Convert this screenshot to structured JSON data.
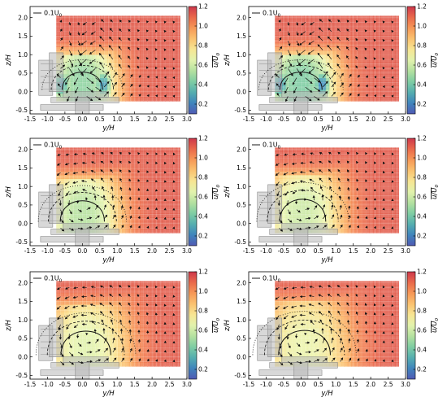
{
  "chart_data": [
    {
      "type": "heatmap",
      "panel": "row1-left",
      "reference_vector_label": "0.1U",
      "reference_vector_sub": "0",
      "xlabel": "y/H",
      "ylabel": "z/H",
      "colorbar_label": "u/U",
      "colorbar_label_sub": "0",
      "x_ticks": [
        "-1.5",
        "-1.0",
        "-0.5",
        "0.0",
        "0.5",
        "1.0",
        "1.5",
        "2.0",
        "2.5",
        "3.0"
      ],
      "y_ticks": [
        "-0.5",
        "0.0",
        "0.5",
        "1.0",
        "1.5",
        "2.0"
      ],
      "colorbar_ticks": [
        "0.2",
        "0.4",
        "0.6",
        "0.8",
        "1.0",
        "1.2"
      ],
      "xlim": [
        -1.5,
        3.0
      ],
      "ylim": [
        -0.6,
        2.3
      ],
      "clim": [
        0.1,
        1.2
      ],
      "field_extent": {
        "y": [
          -0.75,
          2.8
        ],
        "z": [
          -0.25,
          2.05
        ]
      },
      "wake": {
        "center_y": 0.0,
        "half_width": 1.05,
        "top": 1.05,
        "min_value": 0.25,
        "twin_cores": true
      }
    },
    {
      "type": "heatmap",
      "panel": "row1-right",
      "reference_vector_label": "0.1U",
      "reference_vector_sub": "0",
      "xlabel": "y/H",
      "ylabel": "z/H",
      "colorbar_label": "u/U",
      "colorbar_label_sub": "0",
      "x_ticks": [
        "-1.5",
        "-1.0",
        "-0.5",
        "0.0",
        "0.5",
        "1.0",
        "1.5",
        "2.0",
        "2.5",
        "3.0"
      ],
      "y_ticks": [
        "-0.5",
        "0.0",
        "0.5",
        "1.0",
        "1.5",
        "2.0"
      ],
      "colorbar_ticks": [
        "0.2",
        "0.4",
        "0.6",
        "0.8",
        "1.0",
        "1.2"
      ],
      "xlim": [
        -1.5,
        3.0
      ],
      "ylim": [
        -0.6,
        2.3
      ],
      "clim": [
        0.1,
        1.2
      ],
      "field_extent": {
        "y": [
          -0.75,
          2.8
        ],
        "z": [
          -0.25,
          2.05
        ]
      },
      "wake": {
        "center_y": 0.0,
        "half_width": 1.1,
        "top": 1.05,
        "min_value": 0.2,
        "twin_cores": true
      }
    },
    {
      "type": "heatmap",
      "panel": "row2-left",
      "reference_vector_label": "0.1U",
      "reference_vector_sub": "0",
      "xlabel": "y/H",
      "ylabel": "z/H",
      "colorbar_label": "u/U",
      "colorbar_label_sub": "0",
      "x_ticks": [
        "-1.5",
        "-1.0",
        "-0.5",
        "0.0",
        "0.5",
        "1.0",
        "1.5",
        "2.0",
        "2.5",
        "3.0"
      ],
      "y_ticks": [
        "-0.5",
        "0.0",
        "0.5",
        "1.0",
        "1.5",
        "2.0"
      ],
      "colorbar_ticks": [
        "0.2",
        "0.4",
        "0.6",
        "0.8",
        "1.0",
        "1.2"
      ],
      "xlim": [
        -1.5,
        3.0
      ],
      "ylim": [
        -0.6,
        2.3
      ],
      "clim": [
        0.1,
        1.2
      ],
      "field_extent": {
        "y": [
          -0.75,
          2.8
        ],
        "z": [
          -0.25,
          2.05
        ]
      },
      "wake": {
        "center_y": 0.0,
        "half_width": 1.15,
        "top": 1.25,
        "min_value": 0.55,
        "twin_cores": false
      }
    },
    {
      "type": "heatmap",
      "panel": "row2-right",
      "reference_vector_label": "0.1U",
      "reference_vector_sub": "0",
      "xlabel": "y/H",
      "ylabel": "z/H",
      "colorbar_label": "u/U",
      "colorbar_label_sub": "0",
      "x_ticks": [
        "-1.5",
        "-1.0",
        "-0.5",
        "0.0",
        "0.5",
        "1.0",
        "1.5",
        "2.0",
        "2.5",
        "3.0"
      ],
      "y_ticks": [
        "-0.5",
        "0.0",
        "0.5",
        "1.0",
        "1.5",
        "2.0"
      ],
      "colorbar_ticks": [
        "0.2",
        "0.4",
        "0.6",
        "0.8",
        "1.0",
        "1.2"
      ],
      "xlim": [
        -1.5,
        3.0
      ],
      "ylim": [
        -0.6,
        2.3
      ],
      "clim": [
        0.1,
        1.2
      ],
      "field_extent": {
        "y": [
          -0.75,
          2.8
        ],
        "z": [
          -0.25,
          2.05
        ]
      },
      "wake": {
        "center_y": 0.05,
        "half_width": 1.2,
        "top": 1.35,
        "min_value": 0.6,
        "twin_cores": false
      }
    },
    {
      "type": "heatmap",
      "panel": "row3-left",
      "reference_vector_label": "0.1U",
      "reference_vector_sub": "0",
      "xlabel": "y/H",
      "ylabel": "z/H",
      "colorbar_label": "u/U",
      "colorbar_label_sub": "0",
      "x_ticks": [
        "-1.5",
        "-1.0",
        "-0.5",
        "0.0",
        "0.5",
        "1.0",
        "1.5",
        "2.0",
        "2.5",
        "3.0"
      ],
      "y_ticks": [
        "-0.5",
        "0.0",
        "0.5",
        "1.0",
        "1.5",
        "2.0"
      ],
      "colorbar_ticks": [
        "0.2",
        "0.4",
        "0.6",
        "0.8",
        "1.0",
        "1.2"
      ],
      "xlim": [
        -1.5,
        3.0
      ],
      "ylim": [
        -0.6,
        2.3
      ],
      "clim": [
        0.1,
        1.2
      ],
      "field_extent": {
        "y": [
          -0.75,
          2.8
        ],
        "z": [
          -0.25,
          2.05
        ]
      },
      "wake": {
        "center_y": 0.1,
        "half_width": 1.3,
        "top": 1.45,
        "min_value": 0.65,
        "twin_cores": false
      }
    },
    {
      "type": "heatmap",
      "panel": "row3-right",
      "reference_vector_label": "0.1U",
      "reference_vector_sub": "0",
      "xlabel": "y/H",
      "ylabel": "z/H",
      "colorbar_label": "u/U",
      "colorbar_label_sub": "0",
      "x_ticks": [
        "-1.5",
        "-1.0",
        "-0.5",
        "0.0",
        "0.5",
        "1.0",
        "1.5",
        "2.0",
        "2.5",
        "3.0"
      ],
      "y_ticks": [
        "-0.5",
        "0.0",
        "0.5",
        "1.0",
        "1.5",
        "2.0"
      ],
      "colorbar_ticks": [
        "0.2",
        "0.4",
        "0.6",
        "0.8",
        "1.0",
        "1.2"
      ],
      "xlim": [
        -1.5,
        3.0
      ],
      "ylim": [
        -0.6,
        2.3
      ],
      "clim": [
        0.1,
        1.2
      ],
      "field_extent": {
        "y": [
          -0.75,
          2.8
        ],
        "z": [
          -0.25,
          2.05
        ]
      },
      "wake": {
        "center_y": 0.1,
        "half_width": 1.35,
        "top": 1.5,
        "min_value": 0.68,
        "twin_cores": false
      }
    }
  ]
}
